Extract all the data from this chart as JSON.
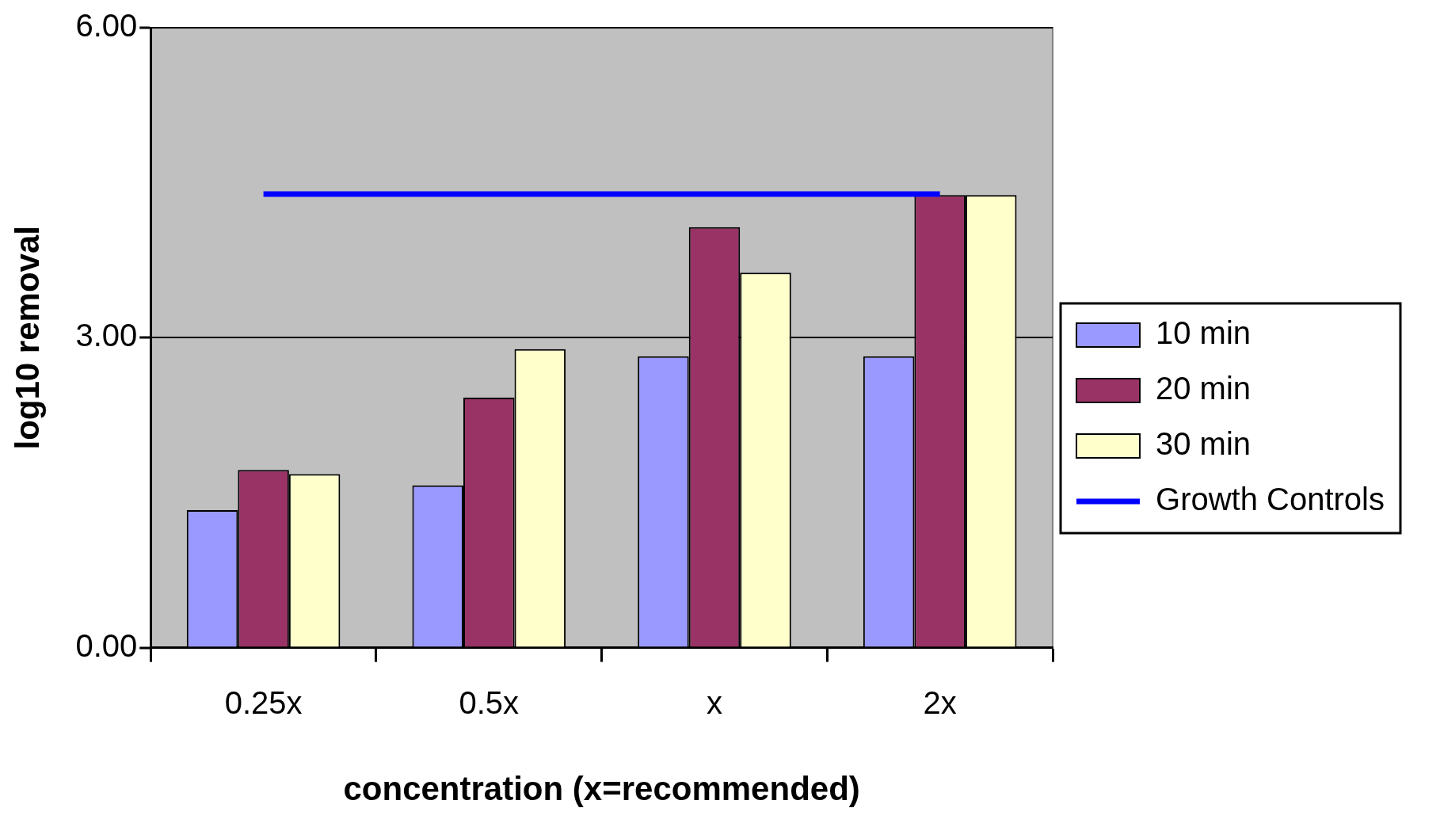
{
  "chart_data": {
    "type": "bar",
    "xlabel": "concentration (x=recommended)",
    "ylabel": "log10 removal",
    "categories": [
      "0.25x",
      "0.5x",
      "x",
      "2x"
    ],
    "series": [
      {
        "name": "10 min",
        "color": "#9999ff",
        "values": [
          1.33,
          1.57,
          2.82,
          2.82
        ]
      },
      {
        "name": "20 min",
        "color": "#993366",
        "values": [
          1.72,
          2.42,
          4.07,
          4.38
        ]
      },
      {
        "name": "30 min",
        "color": "#ffffcc",
        "values": [
          1.68,
          2.89,
          3.63,
          4.38
        ]
      },
      {
        "name": "Growth Controls",
        "type": "line",
        "color": "#0000ff",
        "values": [
          4.39,
          4.39,
          4.39,
          4.39
        ]
      }
    ],
    "ylim": [
      0,
      6
    ],
    "yticks": [
      {
        "value": 0,
        "label": "0.00"
      },
      {
        "value": 3,
        "label": "3.00"
      },
      {
        "value": 6,
        "label": "6.00"
      }
    ],
    "grid": "y",
    "legend": "right",
    "marker": "none"
  }
}
